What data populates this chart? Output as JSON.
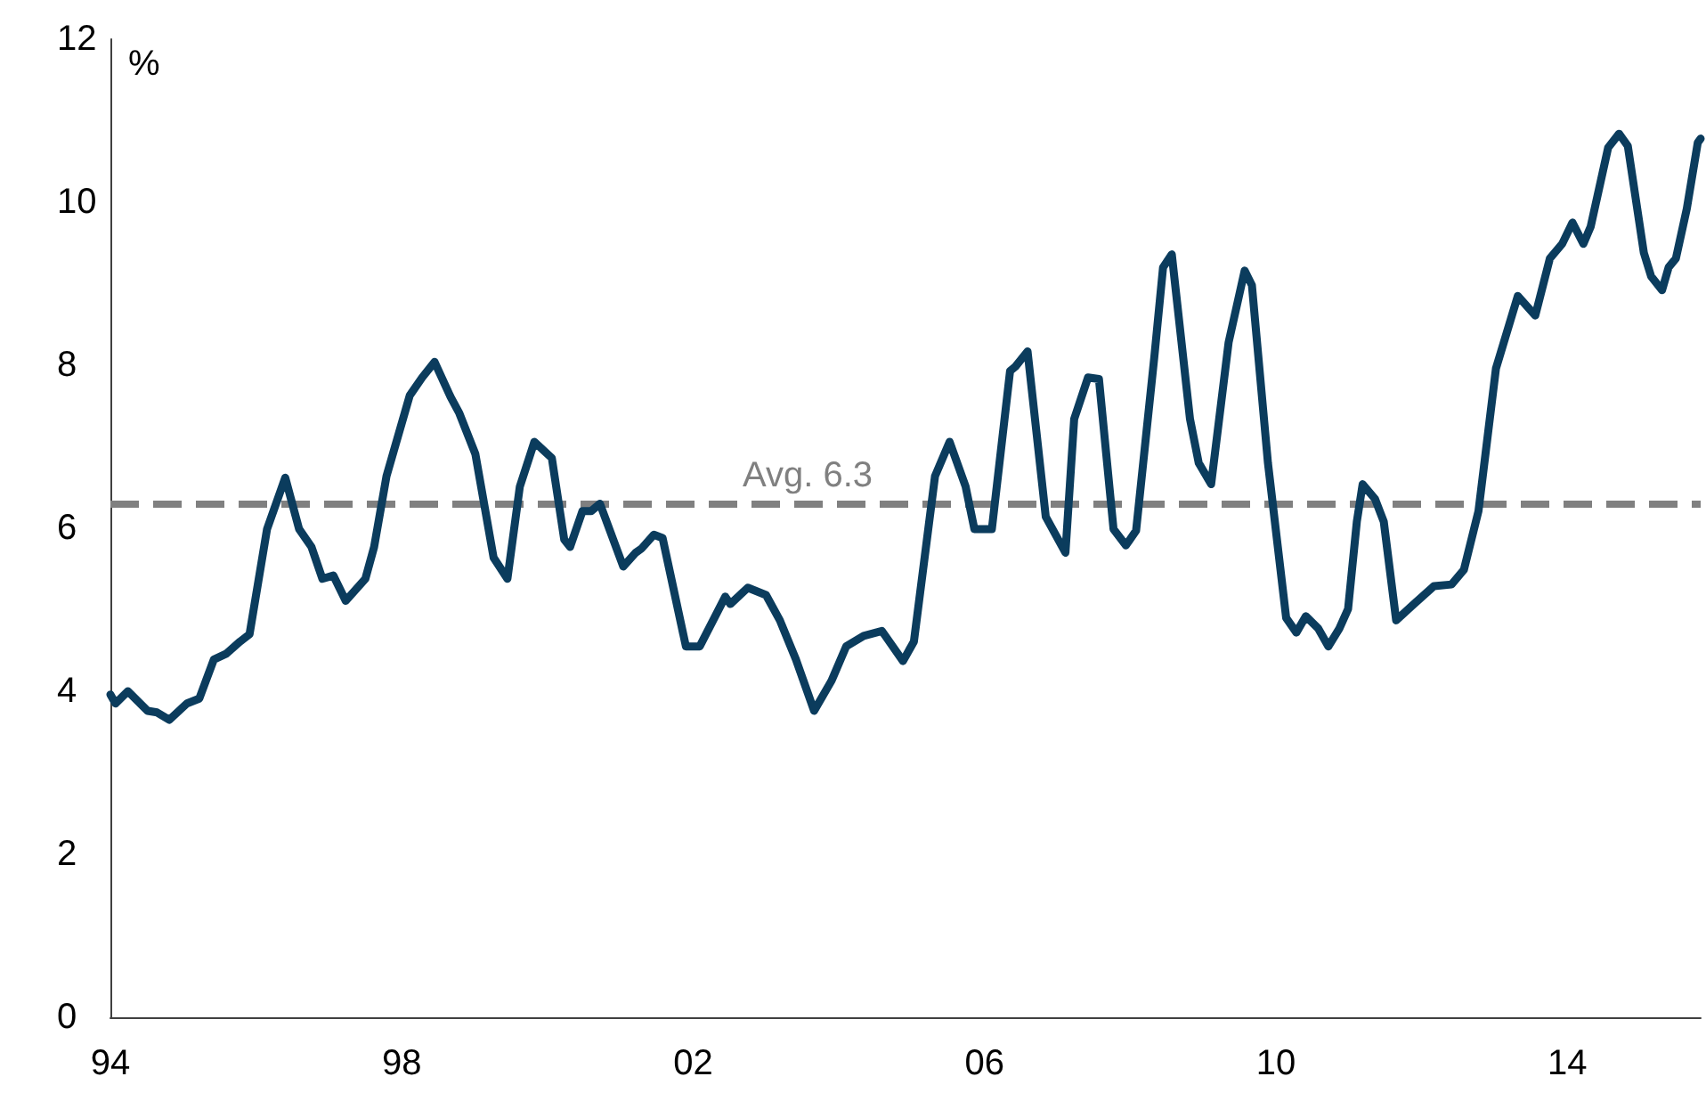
{
  "chart_data": {
    "type": "line",
    "ylabel": "%",
    "x": [
      1994.0,
      1994.07,
      1994.24,
      1994.51,
      1994.64,
      1994.81,
      1995.05,
      1995.22,
      1995.42,
      1995.59,
      1995.78,
      1995.91,
      1996.15,
      1996.4,
      1996.59,
      1996.76,
      1996.91,
      1997.06,
      1997.23,
      1997.5,
      1997.62,
      1997.79,
      1998.11,
      1998.28,
      1998.45,
      1998.67,
      1998.79,
      1999.01,
      1999.26,
      1999.45,
      1999.62,
      1999.82,
      2000.06,
      2000.23,
      2000.31,
      2000.48,
      2000.6,
      2000.72,
      2001.04,
      2001.21,
      2001.29,
      2001.46,
      2001.58,
      2001.9,
      2002.09,
      2002.44,
      2002.51,
      2002.75,
      2003.0,
      2003.19,
      2003.41,
      2003.66,
      2003.9,
      2004.1,
      2004.34,
      2004.59,
      2004.88,
      2005.03,
      2005.32,
      2005.52,
      2005.74,
      2005.86,
      2006.1,
      2006.35,
      2006.42,
      2006.59,
      2006.84,
      2007.11,
      2007.23,
      2007.42,
      2007.57,
      2007.77,
      2007.94,
      2008.08,
      2008.33,
      2008.45,
      2008.57,
      2008.82,
      2008.94,
      2009.11,
      2009.35,
      2009.57,
      2009.67,
      2009.89,
      2010.14,
      2010.28,
      2010.41,
      2010.58,
      2010.72,
      2010.87,
      2010.99,
      2011.11,
      2011.19,
      2011.36,
      2011.48,
      2011.65,
      2011.87,
      2012.17,
      2012.41,
      2012.58,
      2012.78,
      2013.02,
      2013.32,
      2013.56,
      2013.76,
      2013.93,
      2014.07,
      2014.22,
      2014.32,
      2014.56,
      2014.71,
      2014.83,
      2015.05,
      2015.15,
      2015.3,
      2015.39,
      2015.49,
      2015.64,
      2015.79,
      2015.83
    ],
    "series": [
      {
        "color": "#0b3c5d",
        "values": [
          3.96,
          3.85,
          4.0,
          3.76,
          3.74,
          3.65,
          3.85,
          3.91,
          4.39,
          4.46,
          4.61,
          4.7,
          5.99,
          6.62,
          5.99,
          5.77,
          5.38,
          5.42,
          5.11,
          5.38,
          5.77,
          6.64,
          7.63,
          7.85,
          8.04,
          7.61,
          7.41,
          6.91,
          5.64,
          5.38,
          6.51,
          7.06,
          6.86,
          5.86,
          5.77,
          6.21,
          6.21,
          6.3,
          5.53,
          5.7,
          5.75,
          5.92,
          5.88,
          4.55,
          4.55,
          5.16,
          5.07,
          5.27,
          5.18,
          4.87,
          4.39,
          3.76,
          4.13,
          4.55,
          4.68,
          4.74,
          4.37,
          4.61,
          6.64,
          7.06,
          6.51,
          5.99,
          5.99,
          7.93,
          7.98,
          8.17,
          6.14,
          5.7,
          7.34,
          7.85,
          7.83,
          5.99,
          5.79,
          5.97,
          8.1,
          9.2,
          9.36,
          7.34,
          6.8,
          6.54,
          8.28,
          9.16,
          8.98,
          6.8,
          4.9,
          4.72,
          4.92,
          4.77,
          4.55,
          4.77,
          5.01,
          6.08,
          6.54,
          6.36,
          6.08,
          4.87,
          5.05,
          5.29,
          5.31,
          5.49,
          6.21,
          7.96,
          8.85,
          8.61,
          9.31,
          9.49,
          9.75,
          9.49,
          9.7,
          10.67,
          10.84,
          10.69,
          9.38,
          9.09,
          8.92,
          9.2,
          9.31,
          9.92,
          10.73,
          10.78
        ]
      }
    ],
    "xlim": [
      1994,
      2015.83
    ],
    "xticks": [
      {
        "value": 1994,
        "label": "94"
      },
      {
        "value": 1998,
        "label": "98"
      },
      {
        "value": 2002,
        "label": "02"
      },
      {
        "value": 2006,
        "label": "06"
      },
      {
        "value": 2010,
        "label": "10"
      },
      {
        "value": 2014,
        "label": "14"
      }
    ],
    "ylim": [
      0,
      12
    ],
    "yticks": [
      0,
      2,
      4,
      6,
      8,
      10,
      12
    ],
    "ref_lines": [
      {
        "axis": "y",
        "value": 6.3,
        "label": "Avg. 6.3",
        "color": "#808080",
        "line_style": "dashed"
      }
    ],
    "grid": false,
    "marker": "none",
    "line_style": "solid"
  }
}
